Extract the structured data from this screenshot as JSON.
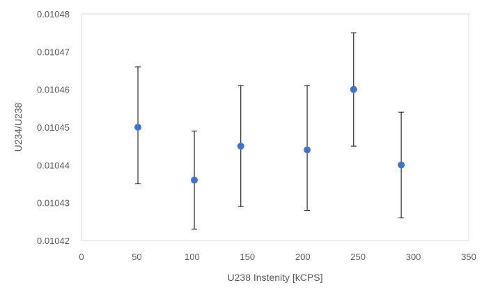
{
  "chart_data": {
    "type": "scatter",
    "xlabel": "U238 Instenity [kCPS]",
    "ylabel": "U234/U238",
    "xlim": [
      0,
      350
    ],
    "ylim": [
      0.01042,
      0.01048
    ],
    "x_ticks": [
      0,
      50,
      100,
      150,
      200,
      250,
      300,
      350
    ],
    "y_ticks": [
      0.01042,
      0.01043,
      0.01044,
      0.01045,
      0.01046,
      0.01047,
      0.01048
    ],
    "x_tick_labels": [
      "0",
      "50",
      "100",
      "150",
      "200",
      "250",
      "300",
      "350"
    ],
    "y_tick_labels": [
      "0.01042",
      "0.01043",
      "0.01044",
      "0.01045",
      "0.01046",
      "0.01047",
      "0.01048"
    ],
    "grid": false,
    "legend": false,
    "colors": {
      "marker": "#4472C4",
      "error_bar": "#000000",
      "plot_border": "#D9D9D9",
      "tick_text": "#595959"
    },
    "series": [
      {
        "x": [
          51,
          102,
          144,
          204,
          246,
          289
        ],
        "y": [
          0.01045,
          0.010436,
          0.010445,
          0.010444,
          0.01046,
          0.01044
        ],
        "y_err_lower": [
          0.010435,
          0.010423,
          0.010429,
          0.010428,
          0.010445,
          0.010426
        ],
        "y_err_upper": [
          0.010466,
          0.010449,
          0.010461,
          0.010461,
          0.010475,
          0.010454
        ]
      }
    ]
  }
}
